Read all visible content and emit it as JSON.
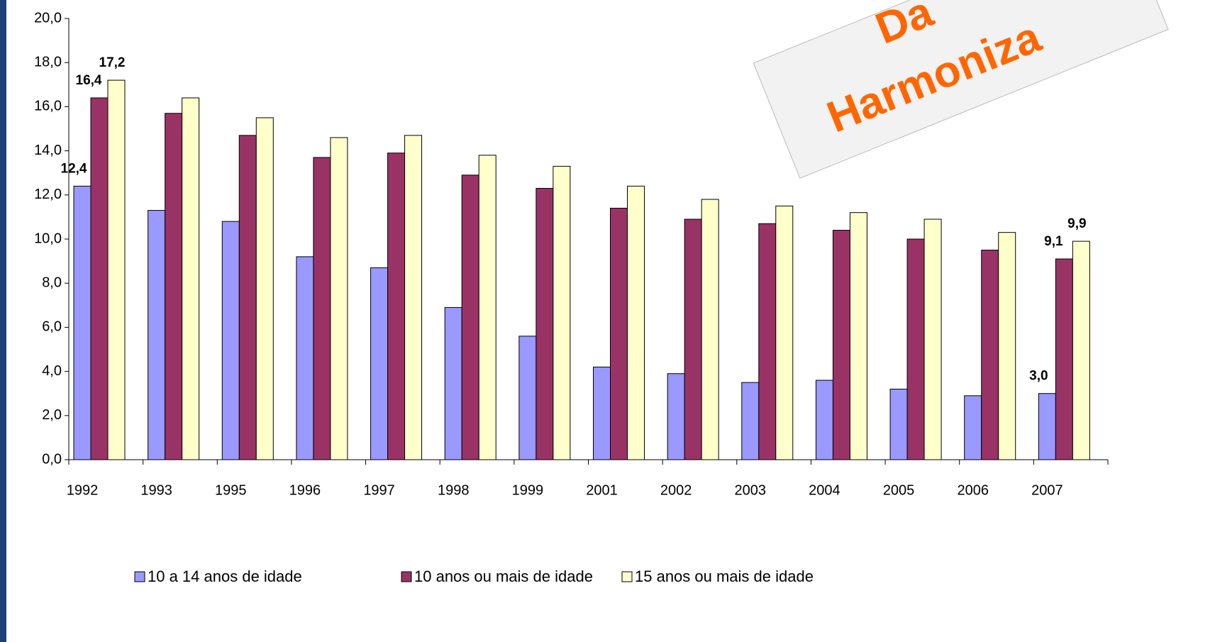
{
  "chart_data": {
    "type": "bar",
    "categories": [
      "1992",
      "1993",
      "1995",
      "1996",
      "1997",
      "1998",
      "1999",
      "2001",
      "2002",
      "2003",
      "2004",
      "2005",
      "2006",
      "2007"
    ],
    "series": [
      {
        "name": "10 a 14 anos de idade",
        "color": "#9999ff",
        "values": [
          12.4,
          11.3,
          10.8,
          9.2,
          8.7,
          6.9,
          5.6,
          4.2,
          3.9,
          3.5,
          3.6,
          3.2,
          2.9,
          3.0
        ],
        "value_labels": [
          "12,4",
          null,
          null,
          null,
          null,
          null,
          null,
          null,
          null,
          null,
          null,
          null,
          null,
          "3,0"
        ]
      },
      {
        "name": "10 anos ou mais de idade",
        "color": "#993366",
        "values": [
          16.4,
          15.7,
          14.7,
          13.7,
          13.9,
          12.9,
          12.3,
          11.4,
          10.9,
          10.7,
          10.4,
          10.0,
          9.5,
          9.1
        ],
        "value_labels": [
          "16,4",
          null,
          null,
          null,
          null,
          null,
          null,
          null,
          null,
          null,
          null,
          null,
          null,
          "9,1"
        ]
      },
      {
        "name": "15 anos  ou mais de idade",
        "color": "#ffffcc",
        "values": [
          17.2,
          16.4,
          15.5,
          14.6,
          14.7,
          13.8,
          13.3,
          12.4,
          11.8,
          11.5,
          11.2,
          10.9,
          10.3,
          9.9
        ],
        "value_labels": [
          "17,2",
          null,
          null,
          null,
          null,
          null,
          null,
          null,
          null,
          null,
          null,
          null,
          null,
          "9,9"
        ]
      }
    ],
    "ylim": [
      0,
      20
    ],
    "yticks": [
      {
        "value": 0,
        "label": "0,0"
      },
      {
        "value": 2,
        "label": "2,0"
      },
      {
        "value": 4,
        "label": "4,0"
      },
      {
        "value": 6,
        "label": "6,0"
      },
      {
        "value": 8,
        "label": "8,0"
      },
      {
        "value": 10,
        "label": "10,0"
      },
      {
        "value": 12,
        "label": "12,0"
      },
      {
        "value": 14,
        "label": "14,0"
      },
      {
        "value": 16,
        "label": "16,0"
      },
      {
        "value": 18,
        "label": "18,0"
      },
      {
        "value": 20,
        "label": "20,0"
      }
    ],
    "legend": "bottom",
    "annotations": [
      "Da",
      "Harmoniza"
    ]
  }
}
